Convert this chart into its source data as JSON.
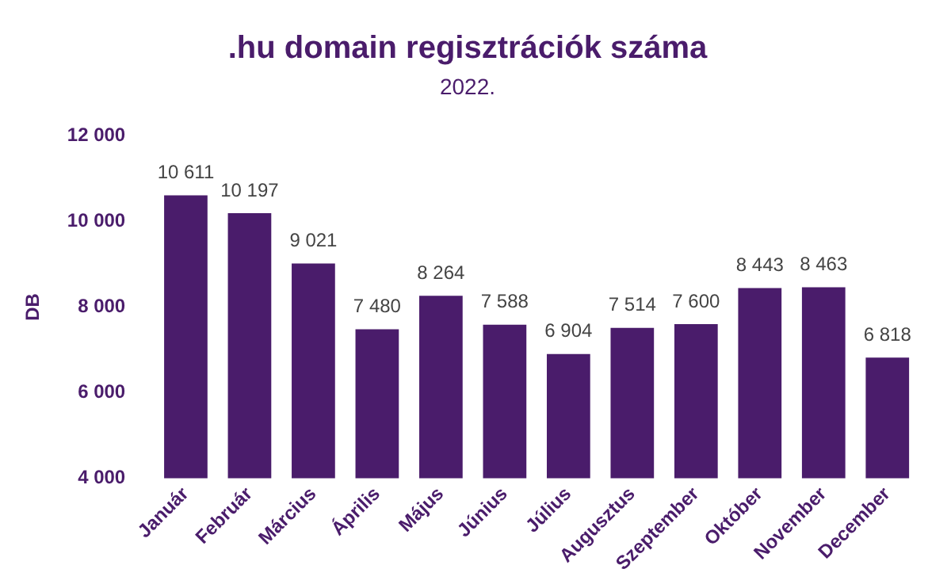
{
  "chart_data": {
    "type": "bar",
    "title": ".hu domain regisztrációk száma",
    "subtitle": "2022.",
    "ylabel": "DB",
    "categories": [
      "Január",
      "Február",
      "Március",
      "Április",
      "Május",
      "Június",
      "Július",
      "Augusztus",
      "Szeptember",
      "Október",
      "November",
      "December"
    ],
    "values": [
      10611,
      10197,
      9021,
      7480,
      8264,
      7588,
      6904,
      7514,
      7600,
      8443,
      8463,
      6818
    ],
    "value_labels": [
      "10 611",
      "10 197",
      "9 021",
      "7 480",
      "8 264",
      "7 588",
      "6 904",
      "7 514",
      "7 600",
      "8 443",
      "8 463",
      "6 818"
    ],
    "color": "#4a1c6b",
    "ylim": [
      4000,
      12000
    ],
    "yticks": [
      {
        "value": 4000,
        "label": "4 000"
      },
      {
        "value": 6000,
        "label": "6 000"
      },
      {
        "value": 8000,
        "label": "8 000"
      },
      {
        "value": 10000,
        "label": "10 000"
      },
      {
        "value": 12000,
        "label": "12 000"
      }
    ],
    "grid": false,
    "legend": false
  }
}
